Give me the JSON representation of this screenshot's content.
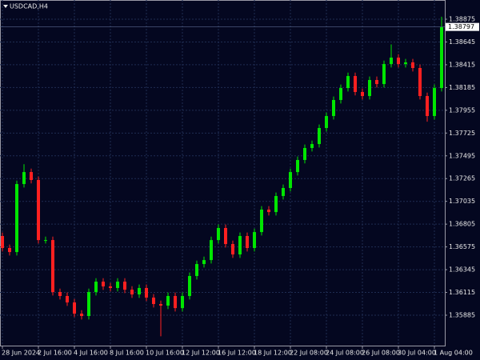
{
  "chart_data": {
    "type": "candlestick",
    "title": "USDCAD,H4",
    "categories": [
      "28 Jun 2024",
      null,
      null,
      null,
      null,
      "2 Jul 16:00",
      null,
      null,
      null,
      null,
      "4 Jul 16:00",
      null,
      null,
      null,
      null,
      "8 Jul 16:00",
      null,
      null,
      null,
      null,
      "10 Jul 16:00",
      null,
      null,
      null,
      null,
      "12 Jul 12:00",
      null,
      null,
      null,
      null,
      "16 Jul 12:00",
      null,
      null,
      null,
      null,
      "18 Jul 12:00",
      null,
      null,
      null,
      null,
      "22 Jul 08:00",
      null,
      null,
      null,
      null,
      "24 Jul 08:00",
      null,
      null,
      null,
      null,
      "26 Jul 08:00",
      null,
      null,
      null,
      null,
      "30 Jul 04:00",
      null,
      null,
      null,
      null,
      "1 Aug 04:00",
      null
    ],
    "open": [
      1.36685,
      1.36564,
      1.36523,
      1.3721,
      1.37331,
      1.37251,
      1.36644,
      1.36644,
      1.36119,
      1.36079,
      1.36014,
      1.35901,
      1.35877,
      1.36119,
      1.36224,
      1.36176,
      1.3616,
      1.36224,
      1.36143,
      1.36095,
      1.3616,
      1.36063,
      1.35998,
      1.35982,
      1.36079,
      1.35957,
      1.36079,
      1.36281,
      1.36402,
      1.36442,
      1.36644,
      1.36766,
      1.36604,
      1.36499,
      1.36685,
      1.36564,
      1.36725,
      1.36952,
      1.36927,
      1.37089,
      1.3717,
      1.37331,
      1.37453,
      1.37574,
      1.37614,
      1.37776,
      1.37897,
      1.38059,
      1.3818,
      1.38301,
      1.3814,
      1.38099,
      1.38261,
      1.3822,
      1.38422,
      1.38487,
      1.38422,
      1.38439,
      1.38382,
      1.38099,
      1.37897,
      1.3818
    ],
    "high": [
      1.3672,
      1.36599,
      1.37245,
      1.3741,
      1.37366,
      1.37286,
      1.36679,
      1.36679,
      1.36154,
      1.36114,
      1.36049,
      1.35936,
      1.36154,
      1.36259,
      1.36259,
      1.36211,
      1.36259,
      1.36259,
      1.36178,
      1.36195,
      1.36195,
      1.36098,
      1.36033,
      1.36114,
      1.36114,
      1.36114,
      1.36316,
      1.36437,
      1.36477,
      1.36679,
      1.36801,
      1.36801,
      1.36639,
      1.3672,
      1.3672,
      1.3676,
      1.36987,
      1.36987,
      1.37124,
      1.37205,
      1.37366,
      1.37488,
      1.37609,
      1.37649,
      1.37811,
      1.37932,
      1.38094,
      1.38215,
      1.38336,
      1.38336,
      1.38175,
      1.38296,
      1.38296,
      1.38457,
      1.3862,
      1.38522,
      1.38474,
      1.38474,
      1.38417,
      1.38134,
      1.38215,
      1.389
    ],
    "low": [
      1.36529,
      1.36488,
      1.36488,
      1.37175,
      1.37216,
      1.36609,
      1.36609,
      1.36084,
      1.36044,
      1.35979,
      1.35866,
      1.35842,
      1.35842,
      1.36084,
      1.36141,
      1.36125,
      1.36125,
      1.36108,
      1.3606,
      1.3606,
      1.36028,
      1.35963,
      1.35672,
      1.35947,
      1.35922,
      1.35922,
      1.36044,
      1.36246,
      1.36367,
      1.36407,
      1.36609,
      1.36569,
      1.36464,
      1.36464,
      1.36529,
      1.36529,
      1.3669,
      1.36892,
      1.36892,
      1.37054,
      1.37135,
      1.37296,
      1.37418,
      1.37539,
      1.37579,
      1.37741,
      1.37862,
      1.38024,
      1.38145,
      1.38105,
      1.38064,
      1.38064,
      1.38185,
      1.38185,
      1.38387,
      1.38387,
      1.38387,
      1.38347,
      1.38064,
      1.3784,
      1.37862,
      1.38145
    ],
    "close": [
      1.36564,
      1.36523,
      1.3721,
      1.37331,
      1.37251,
      1.36644,
      1.36644,
      1.36119,
      1.36079,
      1.36014,
      1.35901,
      1.35877,
      1.36119,
      1.36224,
      1.36176,
      1.3616,
      1.36224,
      1.36143,
      1.36095,
      1.3616,
      1.36063,
      1.35998,
      1.35982,
      1.36079,
      1.35957,
      1.36079,
      1.36281,
      1.36402,
      1.36442,
      1.36644,
      1.36766,
      1.36604,
      1.36499,
      1.36685,
      1.36564,
      1.36725,
      1.36952,
      1.36927,
      1.37089,
      1.3717,
      1.37331,
      1.37453,
      1.37574,
      1.37614,
      1.37776,
      1.37897,
      1.38059,
      1.3818,
      1.38301,
      1.3814,
      1.38099,
      1.38261,
      1.3822,
      1.38422,
      1.38487,
      1.38422,
      1.38439,
      1.38382,
      1.38099,
      1.37897,
      1.3818,
      1.38797
    ],
    "up_color": "#00e600",
    "down_color": "#ff2020",
    "ylim": [
      1.35578,
      1.39069
    ],
    "yticks": [
      1.38875,
      1.38645,
      1.38415,
      1.38185,
      1.37955,
      1.37725,
      1.37495,
      1.37265,
      1.37035,
      1.36805,
      1.36575,
      1.36345,
      1.36115,
      1.35885
    ],
    "last_price": 1.38797,
    "grid": true
  }
}
